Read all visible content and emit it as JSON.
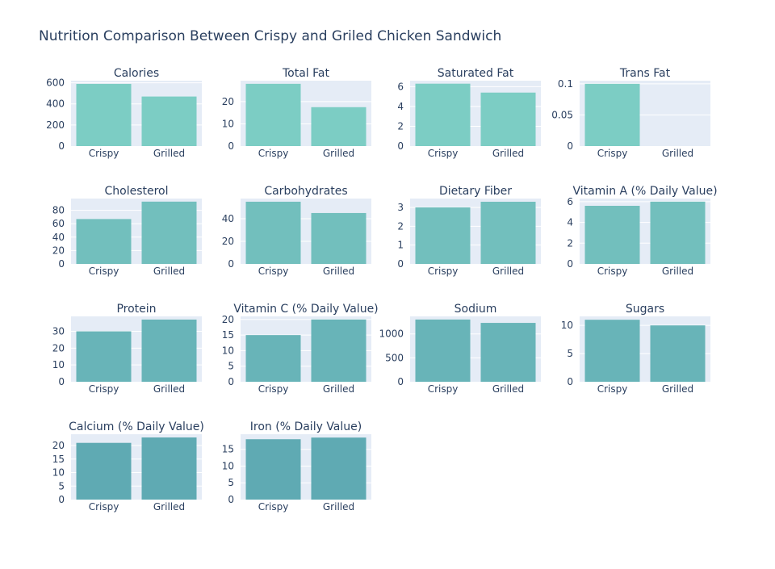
{
  "title": "Nutrition Comparison Between Crispy and Griled Chicken Sandwich",
  "chart_data": [
    {
      "type": "bar",
      "title": "Calories",
      "categories": [
        "Crispy",
        "Grilled"
      ],
      "values": [
        590,
        470
      ],
      "ylim": [
        0,
        620
      ],
      "yticks": [
        0,
        200,
        400,
        600
      ],
      "yticklabels": [
        "0",
        "200",
        "400",
        "600"
      ],
      "color": "#7ccdc4"
    },
    {
      "type": "bar",
      "title": "Total Fat",
      "categories": [
        "Crispy",
        "Grilled"
      ],
      "values": [
        28,
        17.5
      ],
      "ylim": [
        0,
        29.4
      ],
      "yticks": [
        0,
        10,
        20
      ],
      "yticklabels": [
        "0",
        "10",
        "20"
      ],
      "color": "#7ccdc4"
    },
    {
      "type": "bar",
      "title": "Saturated Fat",
      "categories": [
        "Crispy",
        "Grilled"
      ],
      "values": [
        6.3,
        5.4
      ],
      "ylim": [
        0,
        6.6
      ],
      "yticks": [
        0,
        2,
        4,
        6
      ],
      "yticklabels": [
        "0",
        "2",
        "4",
        "6"
      ],
      "color": "#7ccdc4"
    },
    {
      "type": "bar",
      "title": "Trans Fat",
      "categories": [
        "Crispy",
        "Grilled"
      ],
      "values": [
        0.1,
        0
      ],
      "ylim": [
        0,
        0.105
      ],
      "yticks": [
        0,
        0.05,
        0.1
      ],
      "yticklabels": [
        "0",
        "0.05",
        "0.1"
      ],
      "color": "#7ccdc4"
    },
    {
      "type": "bar",
      "title": "Cholesterol",
      "categories": [
        "Crispy",
        "Grilled"
      ],
      "values": [
        67,
        93
      ],
      "ylim": [
        0,
        97.6
      ],
      "yticks": [
        0,
        20,
        40,
        60,
        80
      ],
      "yticklabels": [
        "0",
        "20",
        "40",
        "60",
        "80"
      ],
      "color": "#72bfbd"
    },
    {
      "type": "bar",
      "title": "Carbohydrates",
      "categories": [
        "Crispy",
        "Grilled"
      ],
      "values": [
        55,
        45
      ],
      "ylim": [
        0,
        57.8
      ],
      "yticks": [
        0,
        20,
        40
      ],
      "yticklabels": [
        "0",
        "20",
        "40"
      ],
      "color": "#72bfbd"
    },
    {
      "type": "bar",
      "title": "Dietary Fiber",
      "categories": [
        "Crispy",
        "Grilled"
      ],
      "values": [
        3,
        3.3
      ],
      "ylim": [
        0,
        3.47
      ],
      "yticks": [
        0,
        1,
        2,
        3
      ],
      "yticklabels": [
        "0",
        "1",
        "2",
        "3"
      ],
      "color": "#72bfbd"
    },
    {
      "type": "bar",
      "title": "Vitamin A (% Daily Value)",
      "categories": [
        "Crispy",
        "Grilled"
      ],
      "values": [
        5.6,
        6
      ],
      "ylim": [
        0,
        6.3
      ],
      "yticks": [
        0,
        2,
        4,
        6
      ],
      "yticklabels": [
        "0",
        "2",
        "4",
        "6"
      ],
      "color": "#72bfbd"
    },
    {
      "type": "bar",
      "title": "Protein",
      "categories": [
        "Crispy",
        "Grilled"
      ],
      "values": [
        30,
        37
      ],
      "ylim": [
        0,
        38.9
      ],
      "yticks": [
        0,
        10,
        20,
        30
      ],
      "yticklabels": [
        "0",
        "10",
        "20",
        "30"
      ],
      "color": "#68b4b8"
    },
    {
      "type": "bar",
      "title": "Vitamin C (% Daily Value)",
      "categories": [
        "Crispy",
        "Grilled"
      ],
      "values": [
        15,
        20
      ],
      "ylim": [
        0,
        21
      ],
      "yticks": [
        0,
        5,
        10,
        15,
        20
      ],
      "yticklabels": [
        "0",
        "5",
        "10",
        "15",
        "20"
      ],
      "color": "#68b4b8"
    },
    {
      "type": "bar",
      "title": "Sodium",
      "categories": [
        "Crispy",
        "Grilled"
      ],
      "values": [
        1300,
        1230
      ],
      "ylim": [
        0,
        1366
      ],
      "yticks": [
        0,
        500,
        1000
      ],
      "yticklabels": [
        "0",
        "500",
        "1000"
      ],
      "color": "#68b4b8"
    },
    {
      "type": "bar",
      "title": "Sugars",
      "categories": [
        "Crispy",
        "Grilled"
      ],
      "values": [
        11,
        10
      ],
      "ylim": [
        0,
        11.6
      ],
      "yticks": [
        0,
        5,
        10
      ],
      "yticklabels": [
        "0",
        "5",
        "10"
      ],
      "color": "#68b4b8"
    },
    {
      "type": "bar",
      "title": "Calcium (% Daily Value)",
      "categories": [
        "Crispy",
        "Grilled"
      ],
      "values": [
        21,
        23
      ],
      "ylim": [
        0,
        24.2
      ],
      "yticks": [
        0,
        5,
        10,
        15,
        20
      ],
      "yticklabels": [
        "0",
        "5",
        "10",
        "15",
        "20"
      ],
      "color": "#5faab3"
    },
    {
      "type": "bar",
      "title": "Iron (% Daily Value)",
      "categories": [
        "Crispy",
        "Grilled"
      ],
      "values": [
        18,
        18.5
      ],
      "ylim": [
        0,
        19.5
      ],
      "yticks": [
        0,
        5,
        10,
        15
      ],
      "yticklabels": [
        "0",
        "5",
        "10",
        "15"
      ],
      "color": "#5faab3"
    }
  ],
  "style": {
    "plot_bg": "#e5ecf6",
    "grid": "#ffffff",
    "text": "#2a3f5f"
  }
}
